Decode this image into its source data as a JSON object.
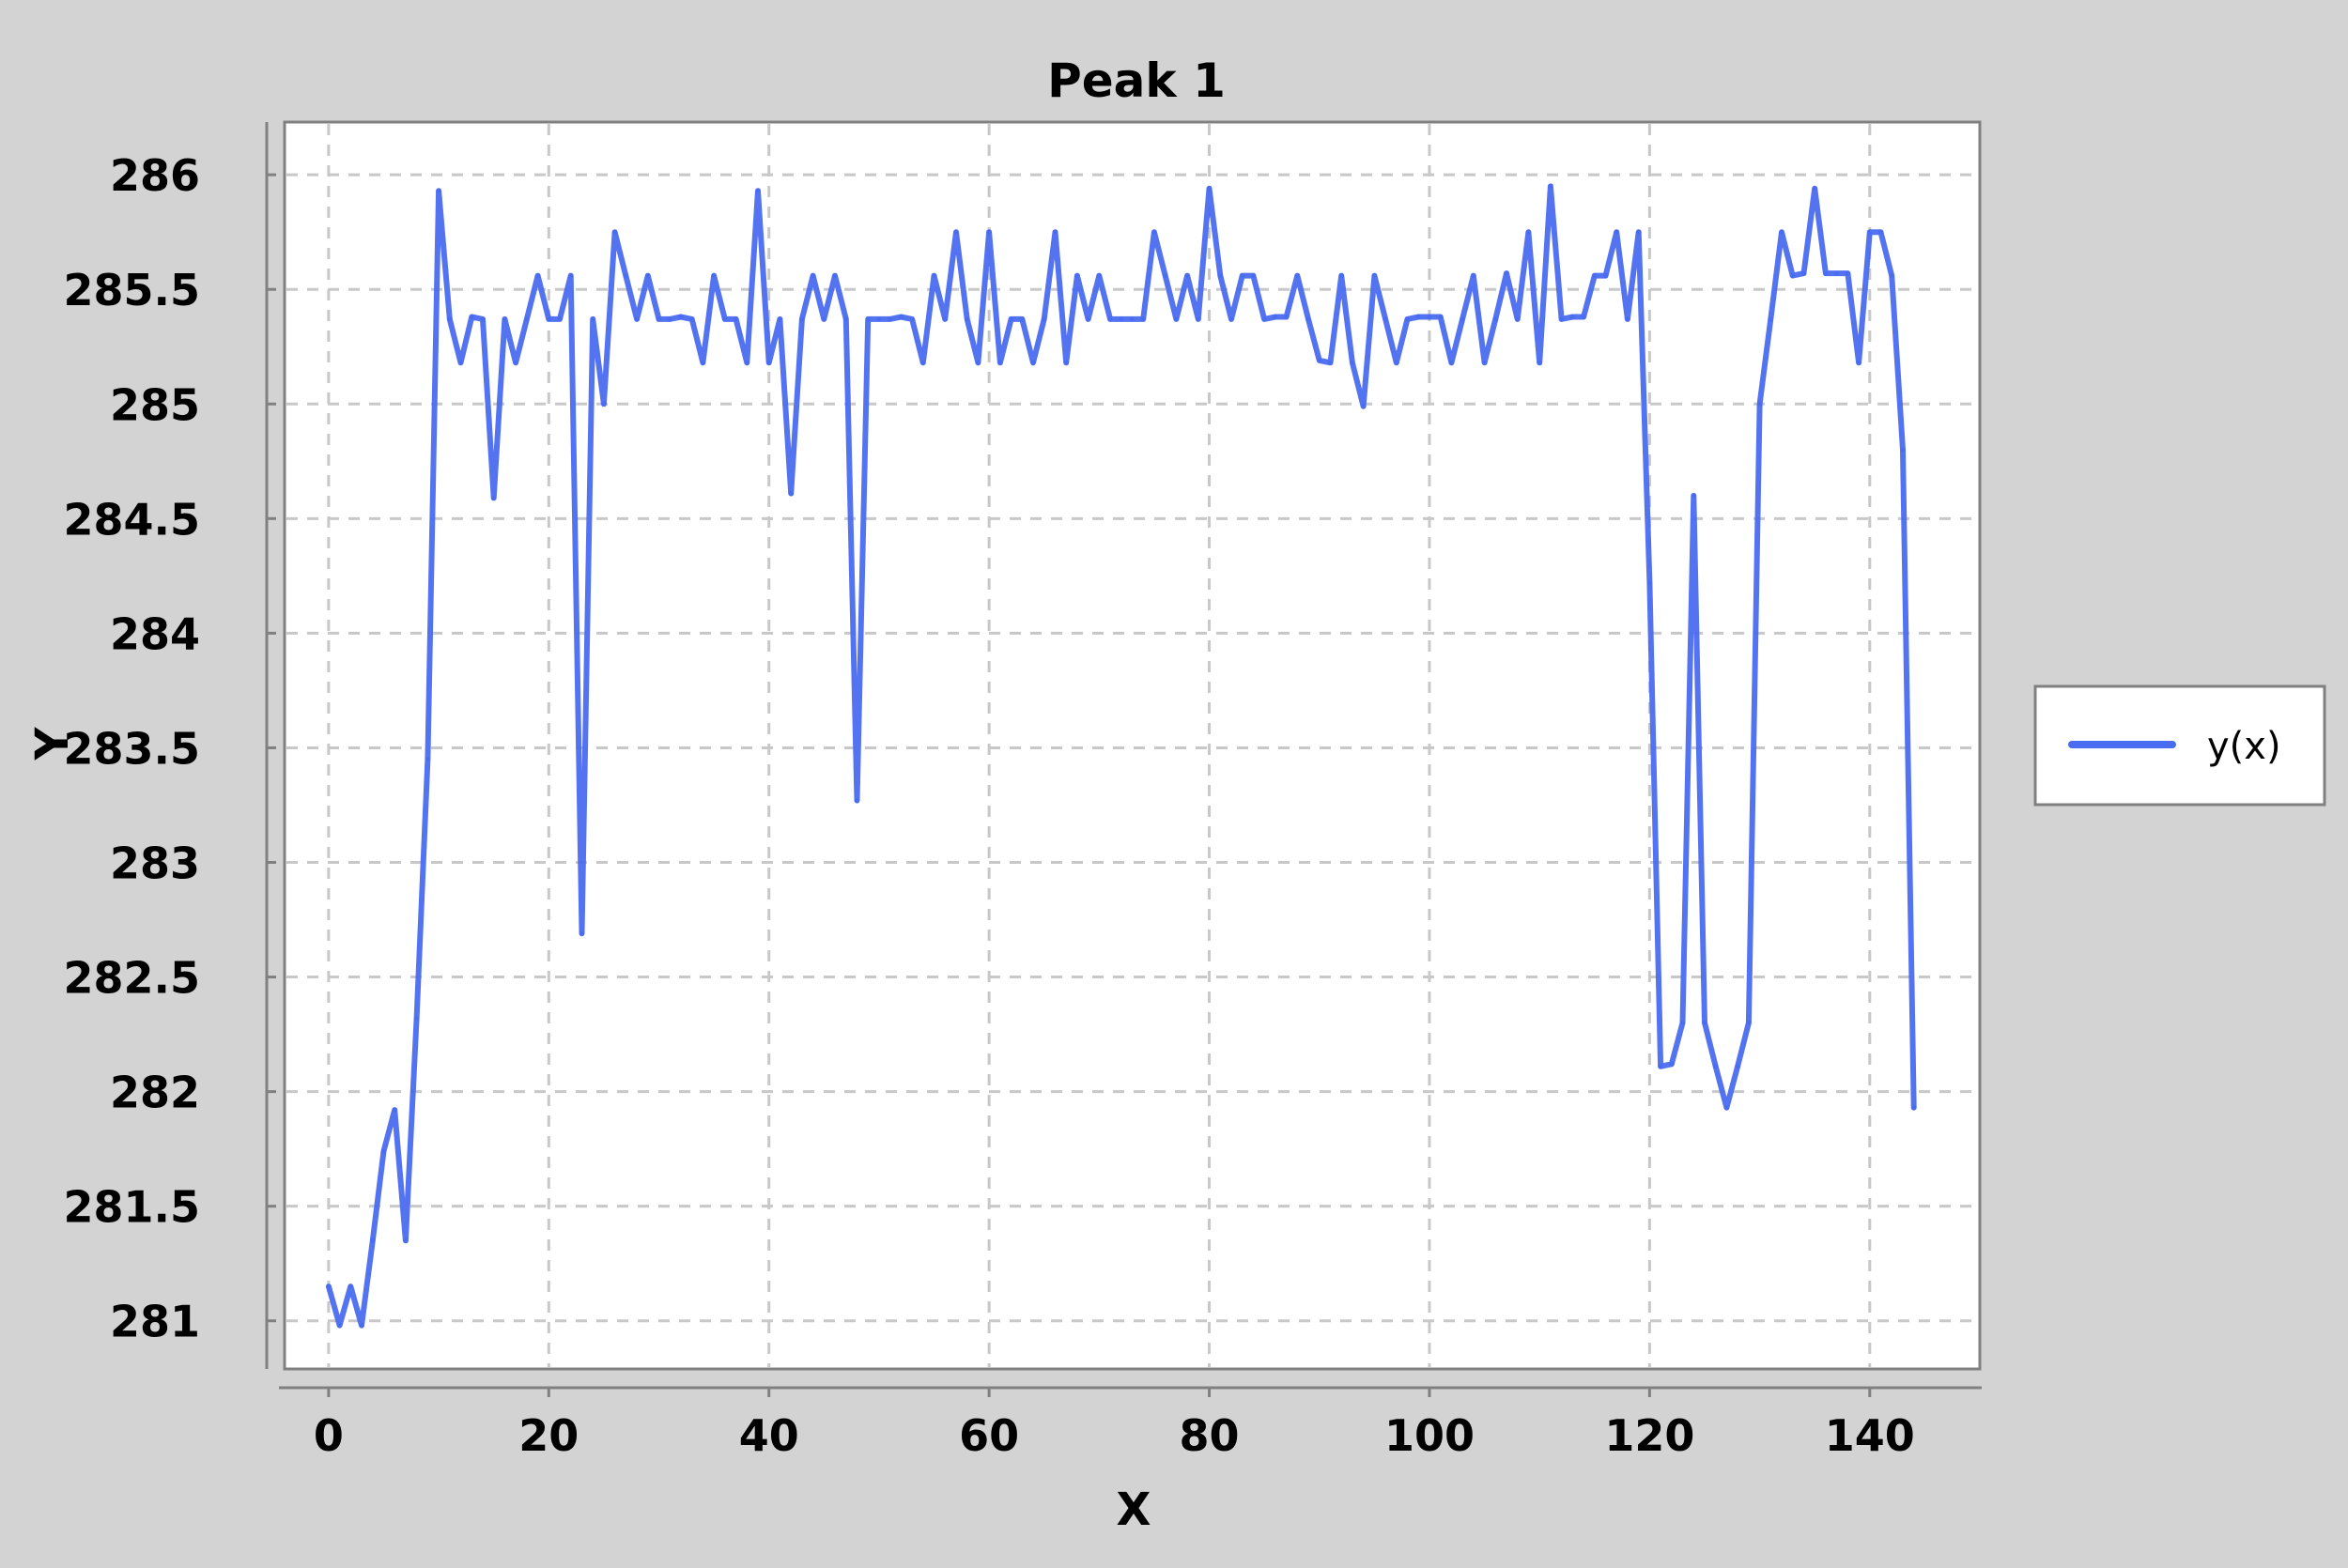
{
  "colors": {
    "background": "#d3d3d3",
    "plot_background": "#ffffff",
    "series_line": "#4a6cf0",
    "grid": "#c8c8c8",
    "axis": "#808080",
    "text": "#000000"
  },
  "chart_data": {
    "type": "line",
    "title": "Peak 1",
    "xlabel": "X",
    "ylabel": "Y",
    "xlim": [
      -4,
      150
    ],
    "ylim": [
      280.79,
      286.23
    ],
    "xticks": [
      0,
      20,
      40,
      60,
      80,
      100,
      120,
      140
    ],
    "xtick_labels": [
      "0",
      "20",
      "40",
      "60",
      "80",
      "100",
      "120",
      "140"
    ],
    "yticks": [
      281,
      281.5,
      282,
      282.5,
      283,
      283.5,
      284,
      284.5,
      285,
      285.5,
      286
    ],
    "ytick_labels": [
      "281",
      "281.5",
      "282",
      "282.5",
      "283",
      "283.5",
      "284",
      "284.5",
      "285",
      "285.5",
      "286"
    ],
    "grid": true,
    "legend_position": "right",
    "series": [
      {
        "name": "y(x)",
        "x": [
          0,
          1,
          2,
          3,
          4,
          5,
          6,
          7,
          8,
          9,
          10,
          11,
          12,
          13,
          14,
          15,
          16,
          17,
          18,
          19,
          20,
          21,
          22,
          23,
          24,
          25,
          26,
          27,
          28,
          29,
          30,
          31,
          32,
          33,
          34,
          35,
          36,
          37,
          38,
          39,
          40,
          41,
          42,
          43,
          44,
          45,
          46,
          47,
          48,
          49,
          50,
          51,
          52,
          53,
          54,
          55,
          56,
          57,
          58,
          59,
          60,
          61,
          62,
          63,
          64,
          65,
          66,
          67,
          68,
          69,
          70,
          71,
          72,
          73,
          74,
          75,
          76,
          77,
          78,
          79,
          80,
          81,
          82,
          83,
          84,
          85,
          86,
          87,
          88,
          89,
          90,
          91,
          92,
          93,
          94,
          95,
          96,
          97,
          98,
          99,
          100,
          101,
          102,
          103,
          104,
          105,
          106,
          107,
          108,
          109,
          110,
          111,
          112,
          113,
          114,
          115,
          116,
          117,
          118,
          119,
          120,
          121,
          122,
          123,
          124,
          125,
          126,
          127,
          128,
          129,
          130,
          131,
          132,
          133,
          134,
          135,
          136,
          137,
          138,
          139,
          140,
          141,
          142,
          143,
          144
        ],
        "y": [
          281.15,
          280.98,
          281.15,
          280.98,
          281.35,
          281.74,
          281.92,
          281.35,
          282.32,
          283.45,
          285.93,
          285.37,
          285.18,
          285.38,
          285.37,
          284.59,
          285.37,
          285.18,
          285.37,
          285.56,
          285.37,
          285.37,
          285.56,
          282.69,
          285.37,
          285.0,
          285.75,
          285.56,
          285.37,
          285.56,
          285.37,
          285.37,
          285.38,
          285.37,
          285.18,
          285.56,
          285.37,
          285.37,
          285.18,
          285.93,
          285.18,
          285.37,
          284.61,
          285.37,
          285.56,
          285.37,
          285.56,
          285.37,
          283.27,
          285.37,
          285.37,
          285.37,
          285.38,
          285.37,
          285.18,
          285.56,
          285.37,
          285.75,
          285.37,
          285.18,
          285.75,
          285.18,
          285.37,
          285.37,
          285.18,
          285.37,
          285.75,
          285.18,
          285.56,
          285.37,
          285.56,
          285.37,
          285.37,
          285.37,
          285.37,
          285.75,
          285.56,
          285.37,
          285.56,
          285.37,
          285.94,
          285.56,
          285.37,
          285.56,
          285.56,
          285.37,
          285.38,
          285.38,
          285.56,
          285.37,
          285.19,
          285.18,
          285.56,
          285.18,
          284.99,
          285.56,
          285.37,
          285.18,
          285.37,
          285.38,
          285.38,
          285.38,
          285.18,
          285.37,
          285.56,
          285.18,
          285.37,
          285.57,
          285.37,
          285.75,
          285.18,
          285.95,
          285.37,
          285.38,
          285.38,
          285.56,
          285.56,
          285.75,
          285.37,
          285.75,
          284.22,
          282.11,
          282.12,
          282.3,
          284.6,
          282.3,
          282.11,
          281.93,
          282.11,
          282.3,
          285.0,
          285.37,
          285.75,
          285.56,
          285.57,
          285.94,
          285.57,
          285.57,
          285.57,
          285.18,
          285.75,
          285.75,
          285.56,
          284.8,
          281.93
        ]
      }
    ]
  }
}
